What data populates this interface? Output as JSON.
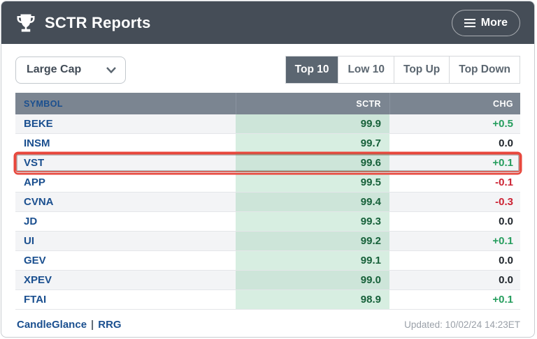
{
  "header": {
    "title": "SCTR Reports",
    "more_label": "More"
  },
  "controls": {
    "group_select": {
      "value": "Large Cap"
    },
    "tabs": [
      {
        "label": "Top 10",
        "active": true
      },
      {
        "label": "Low 10",
        "active": false
      },
      {
        "label": "Top Up",
        "active": false
      },
      {
        "label": "Top Down",
        "active": false
      }
    ]
  },
  "table": {
    "columns": [
      "SYMBOL",
      "SCTR",
      "CHG"
    ],
    "rows": [
      {
        "symbol": "BEKE",
        "sctr": "99.9",
        "chg": "+0.5",
        "highlighted": false
      },
      {
        "symbol": "INSM",
        "sctr": "99.7",
        "chg": "0.0",
        "highlighted": false
      },
      {
        "symbol": "VST",
        "sctr": "99.6",
        "chg": "+0.1",
        "highlighted": true
      },
      {
        "symbol": "APP",
        "sctr": "99.5",
        "chg": "-0.1",
        "highlighted": false
      },
      {
        "symbol": "CVNA",
        "sctr": "99.4",
        "chg": "-0.3",
        "highlighted": false
      },
      {
        "symbol": "JD",
        "sctr": "99.3",
        "chg": "0.0",
        "highlighted": false
      },
      {
        "symbol": "UI",
        "sctr": "99.2",
        "chg": "+0.1",
        "highlighted": false
      },
      {
        "symbol": "GEV",
        "sctr": "99.1",
        "chg": "0.0",
        "highlighted": false
      },
      {
        "symbol": "XPEV",
        "sctr": "99.0",
        "chg": "0.0",
        "highlighted": false
      },
      {
        "symbol": "FTAI",
        "sctr": "98.9",
        "chg": "+0.1",
        "highlighted": false
      }
    ]
  },
  "footer": {
    "links": [
      "CandleGlance",
      "RRG"
    ],
    "separator": "|",
    "updated": "Updated: 10/02/24 14:23ET"
  },
  "colors": {
    "header_bg": "#454d57",
    "tab_active_bg": "#5b6671",
    "thead_bg": "#7b8591",
    "symbol_blue": "#1a4f8f",
    "sctr_green_text": "#17613a",
    "chg_pos": "#259d5d",
    "chg_neg": "#cc2233",
    "highlight_red": "#e8473c"
  }
}
